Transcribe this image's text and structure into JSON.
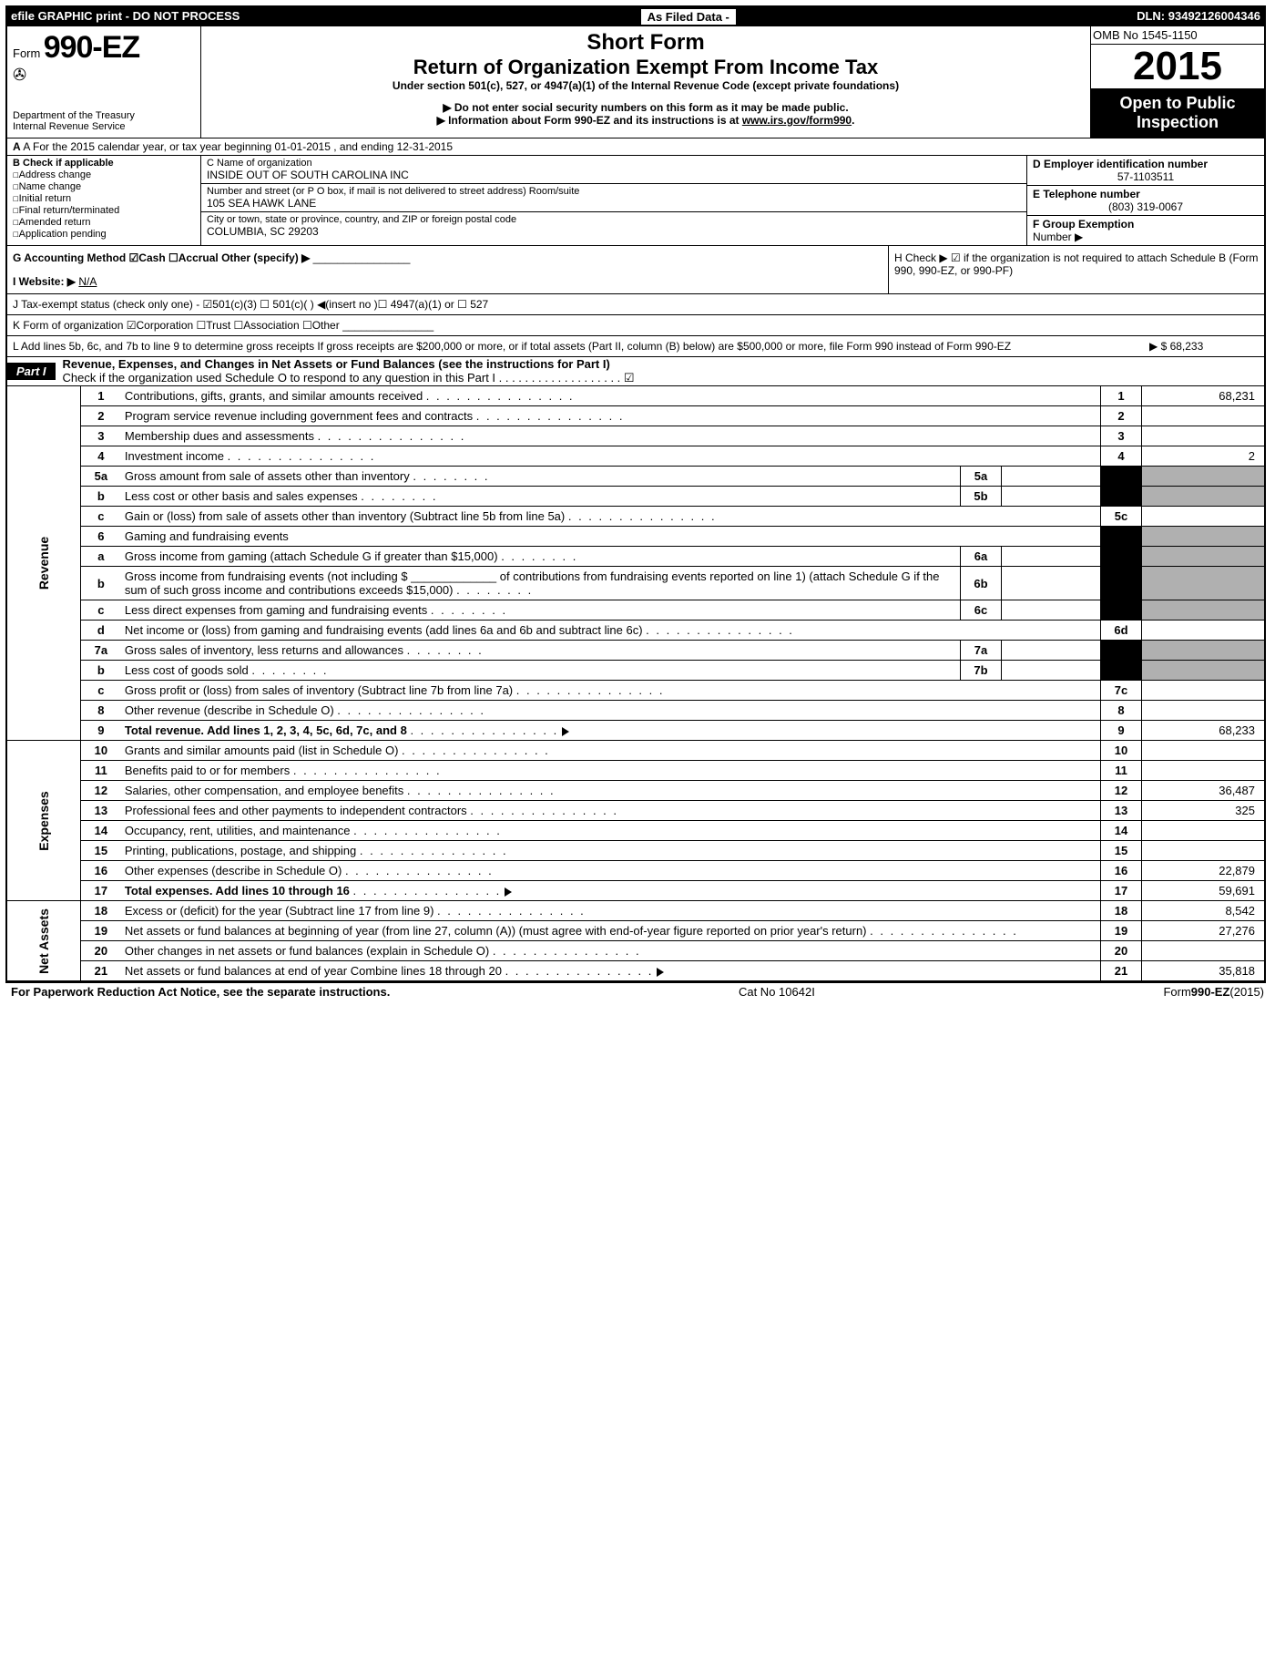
{
  "topbar": {
    "left": "efile GRAPHIC print - DO NOT PROCESS",
    "mid": "As Filed Data -",
    "right": "DLN: 93492126004346"
  },
  "omb": "OMB No  1545-1150",
  "year": "2015",
  "open_public_1": "Open to Public",
  "open_public_2": "Inspection",
  "form_label": "Form",
  "form_num": "990-EZ",
  "dept1": "Department of the Treasury",
  "dept2": "Internal Revenue Service",
  "short_form": "Short Form",
  "return_title": "Return of Organization Exempt From Income Tax",
  "under": "Under section 501(c), 527, or 4947(a)(1) of the Internal Revenue Code (except private foundations)",
  "note1": "▶ Do not enter social security numbers on this form as it may be made public.",
  "note2_pre": "▶ Information about Form 990-EZ and its instructions is at ",
  "note2_link": "www.irs.gov/form990",
  "row_a": "A For the 2015 calendar year, or tax year beginning 01-01-2015       , and ending 12-31-2015",
  "col_b": {
    "head": "B Check if applicable",
    "items": [
      "Address change",
      "Name change",
      "Initial return",
      "Final return/terminated",
      "Amended return",
      "Application pending"
    ]
  },
  "col_c": {
    "name_label": "C Name of organization",
    "name": "INSIDE OUT OF SOUTH CAROLINA INC",
    "addr_label": "Number and street (or P  O  box, if mail is not delivered to street address) Room/suite",
    "addr": "105 SEA HAWK LANE",
    "city_label": "City or town, state or province, country, and ZIP or foreign postal code",
    "city": "COLUMBIA, SC  29203"
  },
  "col_d": {
    "ein_label": "D Employer identification number",
    "ein": "57-1103511",
    "tel_label": "E Telephone number",
    "tel": "(803) 319-0067",
    "group_label": "F Group Exemption",
    "group_label2": "Number  ▶"
  },
  "g_label": "G Accounting Method   ☑Cash  ☐Accrual   Other (specify) ▶",
  "i_label": "I Website: ▶",
  "i_val": "N/A",
  "h_text": "H  Check ▶ ☑ if the organization is not required to attach Schedule B (Form 990, 990-EZ, or 990-PF)",
  "j_text": "J Tax-exempt status (check only one) - ☑501(c)(3)  ☐ 501(c)(  ) ◀(insert no )☐ 4947(a)(1) or ☐ 527",
  "k_text": "K Form of organization   ☑Corporation  ☐Trust  ☐Association  ☐Other",
  "l_text": "L Add lines 5b, 6c, and 7b to line 9 to determine gross receipts  If gross receipts are $200,000 or more, or if total assets (Part II, column (B) below) are $500,000 or more, file Form 990 instead of Form 990-EZ",
  "l_val": "▶ $ 68,233",
  "part1": {
    "label": "Part I",
    "title": "Revenue, Expenses, and Changes in Net Assets or Fund Balances (see the instructions for Part I)",
    "check": "Check if the organization used Schedule O to respond to any question in this Part I  .  .  .  .  .  .  .  .  .  .  .  .  .  .  .  .  .  .  .  ☑"
  },
  "lines": [
    {
      "n": "1",
      "desc": "Contributions, gifts, grants, and similar amounts received",
      "ln": "1",
      "val": "68,231"
    },
    {
      "n": "2",
      "desc": "Program service revenue including government fees and contracts",
      "ln": "2",
      "val": ""
    },
    {
      "n": "3",
      "desc": "Membership dues and assessments",
      "ln": "3",
      "val": ""
    },
    {
      "n": "4",
      "desc": "Investment income",
      "ln": "4",
      "val": "2"
    },
    {
      "n": "5a",
      "desc": "Gross amount from sale of assets other than inventory",
      "sub": "5a"
    },
    {
      "n": "b",
      "desc": "Less  cost or other basis and sales expenses",
      "sub": "5b"
    },
    {
      "n": "c",
      "desc": "Gain or (loss) from sale of assets other than inventory (Subtract line 5b from line 5a)",
      "ln": "5c",
      "val": ""
    },
    {
      "n": "6",
      "desc": "Gaming and fundraising events",
      "noval": true
    },
    {
      "n": "a",
      "desc": "Gross income from gaming (attach Schedule G if greater than $15,000)",
      "sub": "6a"
    },
    {
      "n": "b",
      "desc": "Gross income from fundraising events (not including $ _____________ of contributions from fundraising events reported on line 1) (attach Schedule G if the sum of such gross income and contributions exceeds $15,000)",
      "sub": "6b"
    },
    {
      "n": "c",
      "desc": "Less  direct expenses from gaming and fundraising events",
      "sub": "6c"
    },
    {
      "n": "d",
      "desc": "Net income or (loss) from gaming and fundraising events (add lines 6a and 6b and subtract line 6c)",
      "ln": "6d",
      "val": ""
    },
    {
      "n": "7a",
      "desc": "Gross sales of inventory, less returns and allowances",
      "sub": "7a"
    },
    {
      "n": "b",
      "desc": "Less  cost of goods sold",
      "sub": "7b"
    },
    {
      "n": "c",
      "desc": "Gross profit or (loss) from sales of inventory (Subtract line 7b from line 7a)",
      "ln": "7c",
      "val": ""
    },
    {
      "n": "8",
      "desc": "Other revenue (describe in Schedule O)",
      "ln": "8",
      "val": ""
    },
    {
      "n": "9",
      "desc": "Total revenue. Add lines 1, 2, 3, 4, 5c, 6d, 7c, and 8",
      "ln": "9",
      "val": "68,233",
      "bold": true,
      "arrow": true
    }
  ],
  "expense_lines": [
    {
      "n": "10",
      "desc": "Grants and similar amounts paid (list in Schedule O)",
      "ln": "10",
      "val": ""
    },
    {
      "n": "11",
      "desc": "Benefits paid to or for members",
      "ln": "11",
      "val": ""
    },
    {
      "n": "12",
      "desc": "Salaries, other compensation, and employee benefits",
      "ln": "12",
      "val": "36,487"
    },
    {
      "n": "13",
      "desc": "Professional fees and other payments to independent contractors",
      "ln": "13",
      "val": "325"
    },
    {
      "n": "14",
      "desc": "Occupancy, rent, utilities, and maintenance",
      "ln": "14",
      "val": ""
    },
    {
      "n": "15",
      "desc": "Printing, publications, postage, and shipping",
      "ln": "15",
      "val": ""
    },
    {
      "n": "16",
      "desc": "Other expenses (describe in Schedule O)",
      "ln": "16",
      "val": "22,879"
    },
    {
      "n": "17",
      "desc": "Total expenses. Add lines 10 through 16",
      "ln": "17",
      "val": "59,691",
      "bold": true,
      "arrow": true
    }
  ],
  "netasset_lines": [
    {
      "n": "18",
      "desc": "Excess or (deficit) for the year (Subtract line 17 from line 9)",
      "ln": "18",
      "val": "8,542"
    },
    {
      "n": "19",
      "desc": "Net assets or fund balances at beginning of year (from line 27, column (A)) (must agree with end-of-year figure reported on prior year's return)",
      "ln": "19",
      "val": "27,276"
    },
    {
      "n": "20",
      "desc": "Other changes in net assets or fund balances (explain in Schedule O)",
      "ln": "20",
      "val": ""
    },
    {
      "n": "21",
      "desc": "Net assets or fund balances at end of year  Combine lines 18 through 20",
      "ln": "21",
      "val": "35,818",
      "arrow": true
    }
  ],
  "footer": {
    "left": "For Paperwork Reduction Act Notice, see the separate instructions.",
    "mid": "Cat No  10642I",
    "right": "Form 990-EZ (2015)"
  },
  "sidecats": {
    "revenue": "Revenue",
    "expenses": "Expenses",
    "netassets": "Net Assets"
  }
}
